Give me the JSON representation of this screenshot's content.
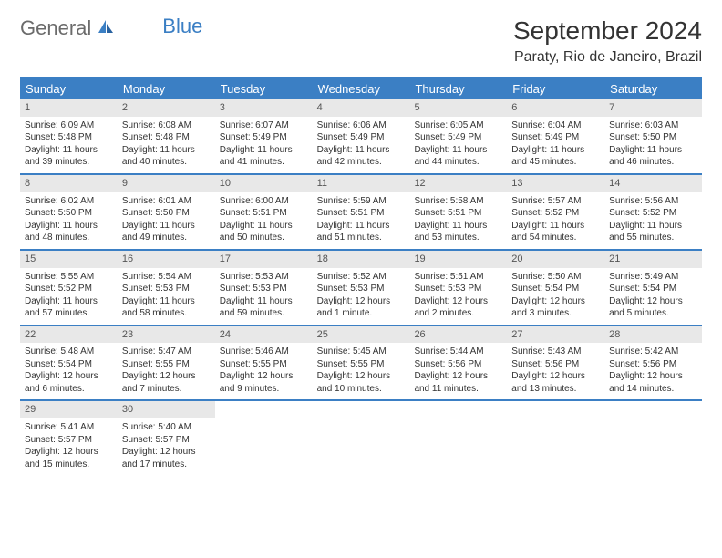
{
  "logo": {
    "text1": "General",
    "text2": "Blue"
  },
  "title": "September 2024",
  "location": "Paraty, Rio de Janeiro, Brazil",
  "colors": {
    "accent": "#3b7fc4",
    "header_bg": "#3b7fc4",
    "daynum_bg": "#e8e8e8",
    "text": "#333333",
    "logo_gray": "#6b6b6b"
  },
  "day_headers": [
    "Sunday",
    "Monday",
    "Tuesday",
    "Wednesday",
    "Thursday",
    "Friday",
    "Saturday"
  ],
  "weeks": [
    [
      {
        "n": "1",
        "sunrise": "6:09 AM",
        "sunset": "5:48 PM",
        "daylight": "11 hours and 39 minutes."
      },
      {
        "n": "2",
        "sunrise": "6:08 AM",
        "sunset": "5:48 PM",
        "daylight": "11 hours and 40 minutes."
      },
      {
        "n": "3",
        "sunrise": "6:07 AM",
        "sunset": "5:49 PM",
        "daylight": "11 hours and 41 minutes."
      },
      {
        "n": "4",
        "sunrise": "6:06 AM",
        "sunset": "5:49 PM",
        "daylight": "11 hours and 42 minutes."
      },
      {
        "n": "5",
        "sunrise": "6:05 AM",
        "sunset": "5:49 PM",
        "daylight": "11 hours and 44 minutes."
      },
      {
        "n": "6",
        "sunrise": "6:04 AM",
        "sunset": "5:49 PM",
        "daylight": "11 hours and 45 minutes."
      },
      {
        "n": "7",
        "sunrise": "6:03 AM",
        "sunset": "5:50 PM",
        "daylight": "11 hours and 46 minutes."
      }
    ],
    [
      {
        "n": "8",
        "sunrise": "6:02 AM",
        "sunset": "5:50 PM",
        "daylight": "11 hours and 48 minutes."
      },
      {
        "n": "9",
        "sunrise": "6:01 AM",
        "sunset": "5:50 PM",
        "daylight": "11 hours and 49 minutes."
      },
      {
        "n": "10",
        "sunrise": "6:00 AM",
        "sunset": "5:51 PM",
        "daylight": "11 hours and 50 minutes."
      },
      {
        "n": "11",
        "sunrise": "5:59 AM",
        "sunset": "5:51 PM",
        "daylight": "11 hours and 51 minutes."
      },
      {
        "n": "12",
        "sunrise": "5:58 AM",
        "sunset": "5:51 PM",
        "daylight": "11 hours and 53 minutes."
      },
      {
        "n": "13",
        "sunrise": "5:57 AM",
        "sunset": "5:52 PM",
        "daylight": "11 hours and 54 minutes."
      },
      {
        "n": "14",
        "sunrise": "5:56 AM",
        "sunset": "5:52 PM",
        "daylight": "11 hours and 55 minutes."
      }
    ],
    [
      {
        "n": "15",
        "sunrise": "5:55 AM",
        "sunset": "5:52 PM",
        "daylight": "11 hours and 57 minutes."
      },
      {
        "n": "16",
        "sunrise": "5:54 AM",
        "sunset": "5:53 PM",
        "daylight": "11 hours and 58 minutes."
      },
      {
        "n": "17",
        "sunrise": "5:53 AM",
        "sunset": "5:53 PM",
        "daylight": "11 hours and 59 minutes."
      },
      {
        "n": "18",
        "sunrise": "5:52 AM",
        "sunset": "5:53 PM",
        "daylight": "12 hours and 1 minute."
      },
      {
        "n": "19",
        "sunrise": "5:51 AM",
        "sunset": "5:53 PM",
        "daylight": "12 hours and 2 minutes."
      },
      {
        "n": "20",
        "sunrise": "5:50 AM",
        "sunset": "5:54 PM",
        "daylight": "12 hours and 3 minutes."
      },
      {
        "n": "21",
        "sunrise": "5:49 AM",
        "sunset": "5:54 PM",
        "daylight": "12 hours and 5 minutes."
      }
    ],
    [
      {
        "n": "22",
        "sunrise": "5:48 AM",
        "sunset": "5:54 PM",
        "daylight": "12 hours and 6 minutes."
      },
      {
        "n": "23",
        "sunrise": "5:47 AM",
        "sunset": "5:55 PM",
        "daylight": "12 hours and 7 minutes."
      },
      {
        "n": "24",
        "sunrise": "5:46 AM",
        "sunset": "5:55 PM",
        "daylight": "12 hours and 9 minutes."
      },
      {
        "n": "25",
        "sunrise": "5:45 AM",
        "sunset": "5:55 PM",
        "daylight": "12 hours and 10 minutes."
      },
      {
        "n": "26",
        "sunrise": "5:44 AM",
        "sunset": "5:56 PM",
        "daylight": "12 hours and 11 minutes."
      },
      {
        "n": "27",
        "sunrise": "5:43 AM",
        "sunset": "5:56 PM",
        "daylight": "12 hours and 13 minutes."
      },
      {
        "n": "28",
        "sunrise": "5:42 AM",
        "sunset": "5:56 PM",
        "daylight": "12 hours and 14 minutes."
      }
    ],
    [
      {
        "n": "29",
        "sunrise": "5:41 AM",
        "sunset": "5:57 PM",
        "daylight": "12 hours and 15 minutes."
      },
      {
        "n": "30",
        "sunrise": "5:40 AM",
        "sunset": "5:57 PM",
        "daylight": "12 hours and 17 minutes."
      },
      null,
      null,
      null,
      null,
      null
    ]
  ],
  "labels": {
    "sunrise": "Sunrise:",
    "sunset": "Sunset:",
    "daylight": "Daylight:"
  }
}
